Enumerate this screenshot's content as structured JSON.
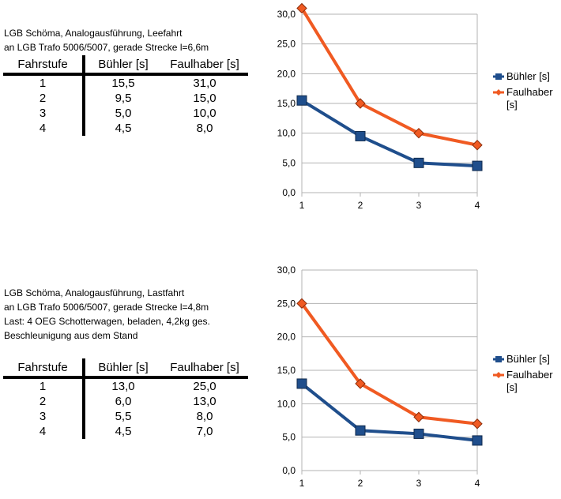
{
  "colors": {
    "buehler": "#1f4e8c",
    "faulhaber": "#f05a22",
    "grid": "#b3b3b3"
  },
  "sections": [
    {
      "description": [
        "LGB Schöma, Analogausführung, Leefahrt",
        "an LGB Trafo 5006/5007, gerade Strecke l=6,6m"
      ],
      "table": {
        "headers": [
          "Fahrstufe",
          "Bühler [s]",
          "Faulhaber [s]"
        ],
        "rows": [
          [
            "1",
            "15,5",
            "31,0"
          ],
          [
            "2",
            "9,5",
            "15,0"
          ],
          [
            "3",
            "5,0",
            "10,0"
          ],
          [
            "4",
            "4,5",
            "8,0"
          ]
        ]
      }
    },
    {
      "description": [
        "LGB Schöma, Analogausführung, Lastfahrt",
        "an LGB Trafo 5006/5007, gerade Strecke l=4,8m",
        "Last: 4 OEG Schotterwagen, beladen, 4,2kg ges.",
        "Beschleunigung aus dem Stand"
      ],
      "table": {
        "headers": [
          "Fahrstufe",
          "Bühler [s]",
          "Faulhaber [s]"
        ],
        "rows": [
          [
            "1",
            "13,0",
            "25,0"
          ],
          [
            "2",
            "6,0",
            "13,0"
          ],
          [
            "3",
            "5,5",
            "8,0"
          ],
          [
            "4",
            "4,5",
            "7,0"
          ]
        ]
      }
    }
  ],
  "chart_data": [
    {
      "type": "line",
      "title": "",
      "xlabel": "",
      "ylabel": "",
      "categories": [
        "1",
        "2",
        "3",
        "4"
      ],
      "ylim": [
        0,
        30
      ],
      "yticks": [
        "0,0",
        "5,0",
        "10,0",
        "15,0",
        "20,0",
        "25,0",
        "30,0"
      ],
      "grid": true,
      "legend": "right",
      "series": [
        {
          "name": "Bühler [s]",
          "values": [
            15.5,
            9.5,
            5.0,
            4.5
          ],
          "marker": "square"
        },
        {
          "name": "Faulhaber [s]",
          "values": [
            31.0,
            15.0,
            10.0,
            8.0
          ],
          "marker": "diamond"
        }
      ],
      "legend_labels": [
        [
          "Bühler [s]"
        ],
        [
          "Faulhaber",
          "[s]"
        ]
      ]
    },
    {
      "type": "line",
      "title": "",
      "xlabel": "",
      "ylabel": "",
      "categories": [
        "1",
        "2",
        "3",
        "4"
      ],
      "ylim": [
        0,
        30
      ],
      "yticks": [
        "0,0",
        "5,0",
        "10,0",
        "15,0",
        "20,0",
        "25,0",
        "30,0"
      ],
      "grid": true,
      "legend": "right",
      "series": [
        {
          "name": "Bühler [s]",
          "values": [
            13.0,
            6.0,
            5.5,
            4.5
          ],
          "marker": "square"
        },
        {
          "name": "Faulhaber [s]",
          "values": [
            25.0,
            13.0,
            8.0,
            7.0
          ],
          "marker": "diamond"
        }
      ],
      "legend_labels": [
        [
          "Bühler [s]"
        ],
        [
          "Faulhaber",
          "[s]"
        ]
      ]
    }
  ]
}
